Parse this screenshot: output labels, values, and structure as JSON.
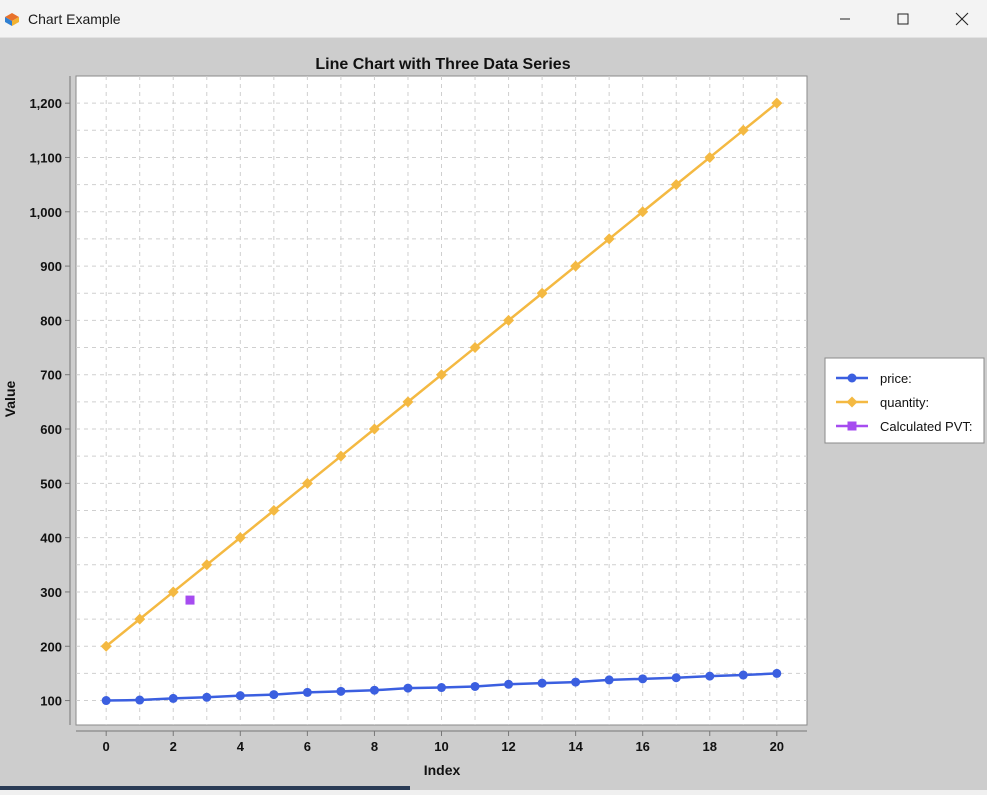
{
  "window": {
    "title": "Chart Example",
    "minimize_icon": "minimize-icon",
    "maximize_icon": "maximize-icon",
    "close_icon": "close-icon",
    "app_icon": "java-cup-icon"
  },
  "colors": {
    "price": "#3b5fe0",
    "quantity": "#f4b942",
    "pvt": "#a64cf0",
    "plot_bg": "#ffffff",
    "frame_bg": "#cdcdcd"
  },
  "chart_data": {
    "type": "line",
    "title": "Line Chart with Three Data Series",
    "xlabel": "Index",
    "ylabel": "Value",
    "xlim": [
      -0.9,
      20.9
    ],
    "ylim": [
      55,
      1250
    ],
    "x_ticks": [
      0,
      2,
      4,
      6,
      8,
      10,
      12,
      14,
      16,
      18,
      20
    ],
    "y_ticks": [
      100,
      200,
      300,
      400,
      500,
      600,
      700,
      800,
      900,
      1000,
      1100,
      1200
    ],
    "y_tick_labels": [
      "100",
      "200",
      "300",
      "400",
      "500",
      "600",
      "700",
      "800",
      "900",
      "1,000",
      "1,100",
      "1,200"
    ],
    "grid": true,
    "legend_position": "right",
    "series": [
      {
        "name": "price:",
        "marker": "circle",
        "x": [
          0,
          1,
          2,
          3,
          4,
          5,
          6,
          7,
          8,
          9,
          10,
          11,
          12,
          13,
          14,
          15,
          16,
          17,
          18,
          19,
          20
        ],
        "values": [
          100,
          101,
          104,
          106,
          109,
          111,
          115,
          117,
          119,
          123,
          124,
          126,
          130,
          132,
          134,
          138,
          140,
          142,
          145,
          147,
          150
        ]
      },
      {
        "name": "quantity:",
        "marker": "diamond",
        "x": [
          0,
          1,
          2,
          3,
          4,
          5,
          6,
          7,
          8,
          9,
          10,
          11,
          12,
          13,
          14,
          15,
          16,
          17,
          18,
          19,
          20
        ],
        "values": [
          200,
          250,
          300,
          350,
          400,
          450,
          500,
          550,
          600,
          650,
          700,
          750,
          800,
          850,
          900,
          950,
          1000,
          1050,
          1100,
          1150,
          1200
        ]
      },
      {
        "name": "Calculated PVT:",
        "marker": "square",
        "x": [
          2.5
        ],
        "values": [
          285
        ]
      }
    ]
  }
}
